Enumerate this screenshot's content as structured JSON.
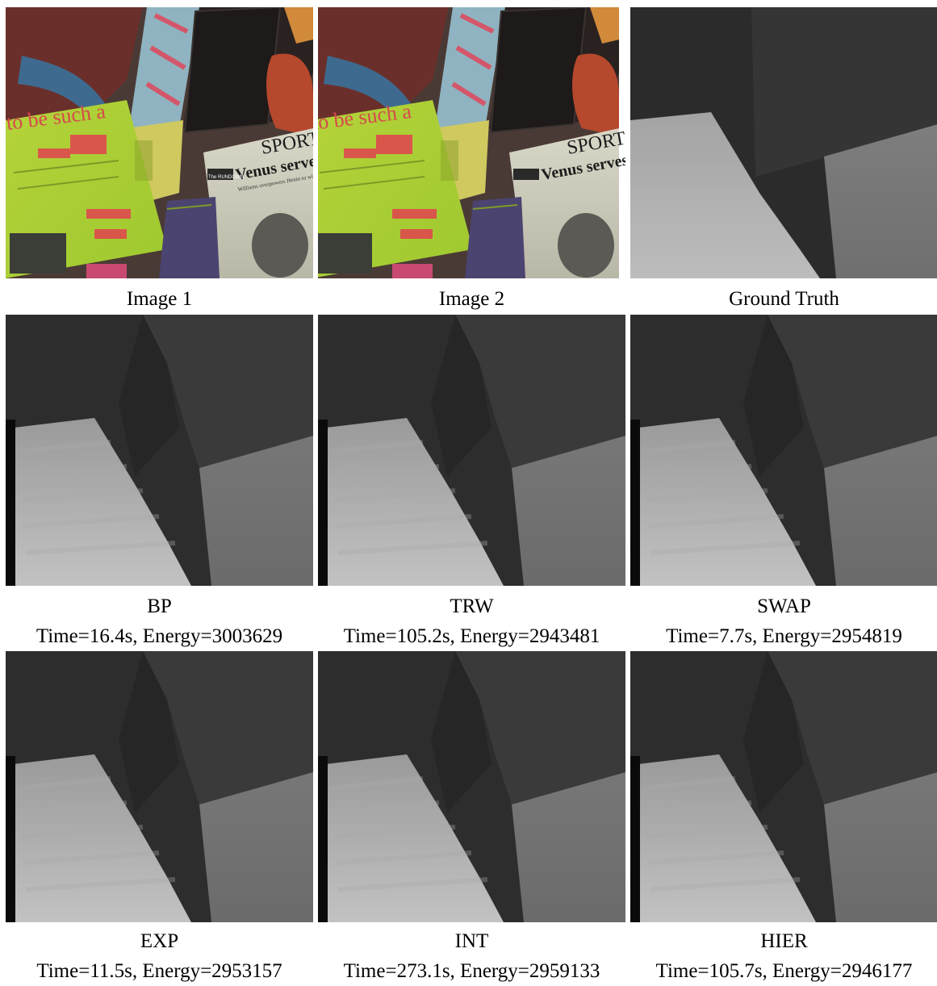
{
  "top_row": {
    "image1": {
      "label": "Image 1"
    },
    "image2": {
      "label": "Image 2"
    },
    "ground_truth": {
      "label": "Ground Truth"
    },
    "scene_text": {
      "banner": "to be such a",
      "headline": "SPORTS",
      "subhead": "Venus serves",
      "section": "The RUNDOWN",
      "byline": "Williams overpowers Henin to win second"
    }
  },
  "results": [
    {
      "method": "BP",
      "stats": "Time=16.4s, Energy=3003629"
    },
    {
      "method": "TRW",
      "stats": "Time=105.2s, Energy=2943481"
    },
    {
      "method": "SWAP",
      "stats": "Time=7.7s, Energy=2954819"
    },
    {
      "method": "EXP",
      "stats": "Time=11.5s, Energy=2953157"
    },
    {
      "method": "INT",
      "stats": "Time=273.1s, Energy=2959133"
    },
    {
      "method": "HIER",
      "stats": "Time=105.7s, Energy=2946177"
    }
  ]
}
